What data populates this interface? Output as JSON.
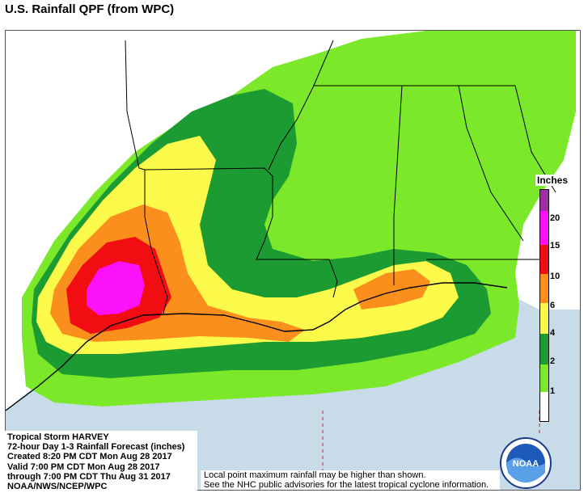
{
  "header": {
    "title": "U.S. Rainfall QPF (from WPC)"
  },
  "legend": {
    "title": "Inches",
    "ticks": [
      "1",
      "2",
      "4",
      "6",
      "10",
      "15",
      "20"
    ],
    "colors": {
      "lt1": "#ffffff",
      "1to2": "#7ce82a",
      "2to4": "#1b9b32",
      "4to6": "#fbfa4a",
      "6to10": "#fb8f1e",
      "10to15": "#f20d12",
      "15to20": "#fb12fb",
      "gt20": "#9e2ea6"
    }
  },
  "map": {
    "water_color": "#c7dbe9",
    "land_color": "#ffffff",
    "border_color": "#000000"
  },
  "info": {
    "line1": "Tropical Storm HARVEY",
    "line2": "72-hour Day 1-3 Rainfall Forecast (inches)",
    "line3": "Created 8:20 PM CDT Mon Aug 28 2017",
    "line4": "Valid 7:00 PM CDT Mon Aug 28 2017",
    "line5": "through 7:00 PM CDT Thu Aug 31 2017",
    "line6": "NOAA/NWS/NCEP/WPC"
  },
  "disclaimer": {
    "line1": "Local point maximum rainfall may be higher than shown.",
    "line2": "See the NHC public advisories for the latest tropical cyclone information."
  },
  "logo": {
    "text": "NOAA"
  }
}
